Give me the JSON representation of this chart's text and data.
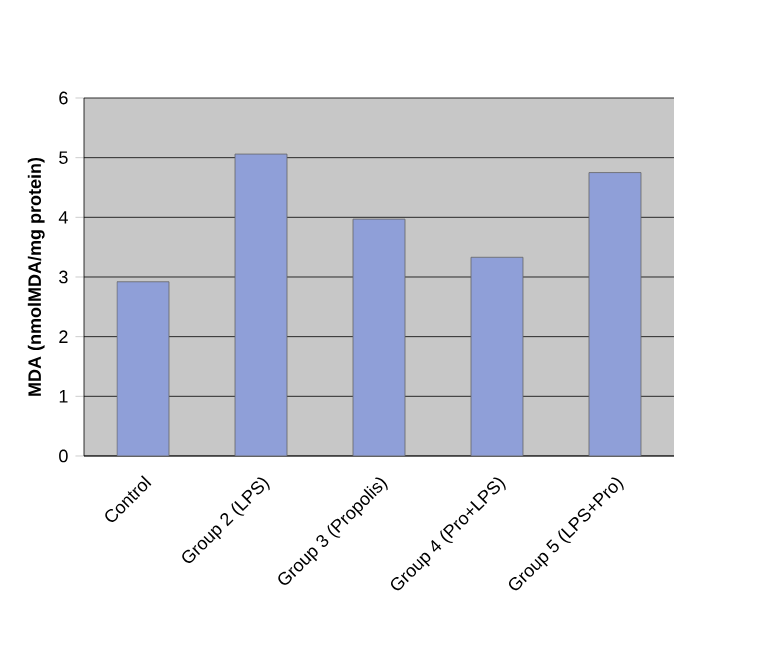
{
  "chart_data": {
    "type": "bar",
    "ylabel": "MDA (nmolMDA/mg protein)",
    "categories": [
      "Control",
      "Group 2 (LPS)",
      "Group 3 (Propolis)",
      "Group 4 (Pro+LPS)",
      "Group 5 (LPS+Pro)"
    ],
    "values": [
      2.92,
      5.06,
      3.97,
      3.33,
      4.75
    ],
    "color": "#8f9fd8",
    "ylim": [
      0,
      6
    ],
    "yticks": [
      0,
      1,
      2,
      3,
      4,
      5,
      6
    ],
    "grid": "y"
  }
}
